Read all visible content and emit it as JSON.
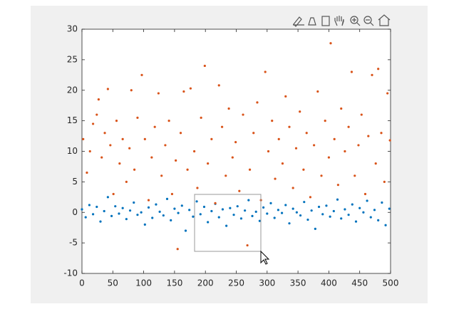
{
  "chart_data": {
    "type": "scatter",
    "xlim": [
      0,
      500
    ],
    "ylim": [
      -10,
      30
    ],
    "xticks": [
      0,
      50,
      100,
      150,
      200,
      250,
      300,
      350,
      400,
      450,
      500
    ],
    "yticks": [
      -10,
      -5,
      0,
      5,
      10,
      15,
      20,
      25,
      30
    ],
    "series": [
      {
        "color": "#0072bd",
        "x": [
          0,
          6,
          12,
          18,
          24,
          30,
          36,
          42,
          48,
          54,
          60,
          66,
          72,
          78,
          84,
          90,
          96,
          102,
          108,
          114,
          120,
          126,
          132,
          138,
          144,
          150,
          156,
          162,
          168,
          174,
          180,
          186,
          192,
          198,
          204,
          210,
          216,
          222,
          228,
          234,
          240,
          246,
          252,
          258,
          264,
          270,
          276,
          282,
          288,
          294,
          300,
          306,
          312,
          318,
          324,
          330,
          336,
          342,
          348,
          354,
          360,
          366,
          372,
          378,
          384,
          390,
          396,
          402,
          408,
          414,
          420,
          426,
          432,
          438,
          444,
          450,
          456,
          462,
          468,
          474,
          480,
          486,
          492,
          498
        ],
        "values": [
          0.5,
          -0.8,
          1.2,
          -0.3,
          0.9,
          -1.5,
          0.2,
          2.5,
          -0.6,
          1.0,
          -0.2,
          0.7,
          -1.1,
          0.3,
          1.6,
          -0.4,
          0.0,
          -2.0,
          0.8,
          -0.9,
          1.3,
          0.1,
          -0.5,
          2.2,
          -1.3,
          0.6,
          -0.1,
          1.1,
          -3.0,
          0.4,
          -0.7,
          1.8,
          -0.3,
          0.9,
          -1.6,
          0.2,
          1.4,
          -0.8,
          0.5,
          -2.2,
          0.7,
          -0.4,
          1.0,
          -1.0,
          0.3,
          2.0,
          -0.6,
          0.1,
          -1.4,
          0.8,
          -0.2,
          1.5,
          -0.9,
          0.4,
          -0.1,
          1.2,
          -1.8,
          0.6,
          0.0,
          -0.5,
          1.7,
          -1.2,
          0.3,
          -2.7,
          0.9,
          -0.3,
          1.1,
          -0.7,
          0.2,
          2.1,
          -1.0,
          0.5,
          -0.4,
          1.3,
          -1.5,
          0.7,
          0.0,
          1.9,
          -0.8,
          0.4,
          -1.3,
          1.6,
          -2.1,
          0.6
        ]
      },
      {
        "color": "#d95319",
        "x": [
          2,
          8,
          13,
          18,
          24,
          27,
          32,
          37,
          42,
          46,
          51,
          56,
          61,
          66,
          72,
          77,
          80,
          85,
          90,
          97,
          102,
          108,
          113,
          118,
          124,
          129,
          135,
          141,
          146,
          152,
          155,
          160,
          165,
          171,
          176,
          182,
          187,
          193,
          199,
          204,
          210,
          216,
          222,
          227,
          233,
          238,
          244,
          249,
          255,
          261,
          268,
          272,
          278,
          284,
          290,
          297,
          302,
          308,
          313,
          319,
          325,
          330,
          336,
          342,
          347,
          353,
          359,
          364,
          370,
          376,
          382,
          388,
          394,
          400,
          403,
          409,
          415,
          420,
          426,
          432,
          437,
          442,
          448,
          453,
          459,
          464,
          470,
          476,
          480,
          485,
          490,
          495,
          499
        ],
        "values": [
          12,
          6.5,
          10,
          14.5,
          16,
          18.5,
          9,
          13,
          20.2,
          11,
          3,
          15,
          8,
          12,
          5,
          10.5,
          20,
          7,
          15.5,
          22.5,
          12,
          2,
          9,
          14,
          19.5,
          6,
          11,
          15,
          3,
          8.5,
          -6,
          13,
          19.8,
          7,
          20.3,
          10,
          4,
          15.5,
          24,
          8,
          12,
          1.5,
          20.8,
          14,
          6,
          17,
          9,
          11.5,
          3.5,
          16,
          -5.4,
          7,
          13,
          18,
          2,
          23,
          10,
          15,
          5.5,
          12,
          8,
          19,
          14,
          4,
          10.5,
          16.5,
          7,
          13,
          2.5,
          11,
          19.8,
          6,
          15,
          9,
          27.7,
          12,
          4.5,
          17,
          10,
          14,
          23,
          6,
          11,
          16,
          3,
          12.5,
          22.5,
          8,
          23.5,
          13,
          5,
          19.5,
          11.8
        ]
      }
    ]
  }
}
